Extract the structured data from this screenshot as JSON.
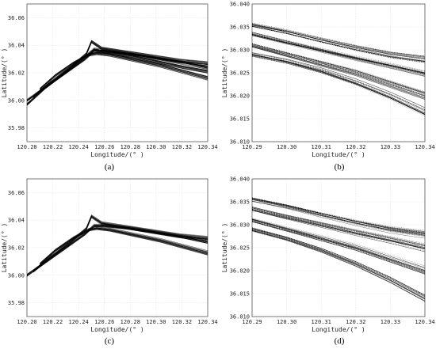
{
  "figure": {
    "captions": [
      "(a)",
      "(b)",
      "(c)",
      "(d)"
    ]
  },
  "chart_data": [
    {
      "type": "line",
      "panel": "(a)",
      "xlabel": "Longitude/(° )",
      "ylabel": "Latitude/(° )",
      "xlim": [
        120.2,
        120.34
      ],
      "ylim": [
        35.97,
        36.07
      ],
      "xticks": [
        "120.20",
        "120.22",
        "120.24",
        "120.26",
        "120.28",
        "120.30",
        "120.32",
        "120.34"
      ],
      "yticks": [
        "35.98",
        "36.00",
        "36.02",
        "36.04",
        "36.06"
      ],
      "grid": true,
      "series": [
        {
          "x": [
            120.2,
            120.215,
            120.23,
            120.245,
            120.252,
            120.26,
            120.28,
            120.3,
            120.32,
            120.34
          ],
          "y": [
            36.0,
            36.01,
            36.02,
            36.03,
            36.036,
            36.036,
            36.034,
            36.031,
            36.028,
            36.024
          ]
        },
        {
          "x": [
            120.2,
            120.214,
            120.228,
            120.243,
            120.252,
            120.262,
            120.282,
            120.302,
            120.322,
            120.34
          ],
          "y": [
            35.997,
            36.009,
            36.019,
            36.03,
            36.037,
            36.035,
            36.032,
            36.028,
            36.024,
            36.021
          ]
        },
        {
          "x": [
            120.205,
            120.218,
            120.232,
            120.246,
            120.25,
            120.258,
            120.278,
            120.298,
            120.318,
            120.34
          ],
          "y": [
            36.003,
            36.013,
            36.023,
            36.034,
            36.043,
            36.038,
            36.035,
            36.032,
            36.029,
            36.027
          ]
        },
        {
          "x": [
            120.21,
            120.222,
            120.236,
            120.248,
            120.254,
            120.264,
            120.284,
            120.304,
            120.324,
            120.34
          ],
          "y": [
            36.008,
            36.018,
            36.027,
            36.033,
            36.034,
            36.033,
            36.029,
            36.025,
            36.02,
            36.016
          ]
        }
      ]
    },
    {
      "type": "line",
      "panel": "(b)",
      "xlabel": "Longitude/(° )",
      "ylabel": "Latitude/(° )",
      "xlim": [
        120.29,
        120.34
      ],
      "ylim": [
        36.01,
        36.04
      ],
      "xticks": [
        "120.29",
        "120.30",
        "120.31",
        "120.32",
        "120.33",
        "120.34"
      ],
      "yticks": [
        "36.010",
        "36.015",
        "36.020",
        "36.025",
        "36.030",
        "36.035",
        "36.040"
      ],
      "grid": true,
      "series": [
        {
          "x": [
            120.29,
            120.3,
            120.31,
            120.32,
            120.33,
            120.34
          ],
          "y": [
            36.0335,
            36.0317,
            36.03,
            36.0283,
            36.0267,
            36.025
          ]
        },
        {
          "x": [
            120.29,
            120.3,
            120.31,
            120.32,
            120.33,
            120.34
          ],
          "y": [
            36.031,
            36.029,
            36.027,
            36.025,
            36.0225,
            36.02
          ]
        },
        {
          "x": [
            120.29,
            120.3,
            120.31,
            120.32,
            120.33,
            120.34
          ],
          "y": [
            36.029,
            36.0275,
            36.0255,
            36.023,
            36.02,
            36.0165
          ]
        },
        {
          "x": [
            120.29,
            120.3,
            120.31,
            120.32,
            120.33,
            120.34
          ],
          "y": [
            36.0355,
            36.034,
            36.0322,
            36.0305,
            36.029,
            36.028
          ]
        }
      ]
    },
    {
      "type": "line",
      "panel": "(c)",
      "xlabel": "Longitude/(° )",
      "ylabel": "Latitude/(° )",
      "xlim": [
        120.2,
        120.34
      ],
      "ylim": [
        35.97,
        36.07
      ],
      "xticks": [
        "120.20",
        "120.22",
        "120.24",
        "120.26",
        "120.28",
        "120.30",
        "120.32",
        "120.34"
      ],
      "yticks": [
        "35.98",
        "36.00",
        "36.02",
        "36.04",
        "36.06"
      ],
      "grid": true,
      "series": [
        {
          "x": [
            120.2,
            120.215,
            120.23,
            120.245,
            120.252,
            120.26,
            120.28,
            120.3,
            120.32,
            120.34
          ],
          "y": [
            36.0,
            36.01,
            36.02,
            36.03,
            36.036,
            36.036,
            36.034,
            36.031,
            36.028,
            36.024
          ]
        },
        {
          "x": [
            120.205,
            120.218,
            120.232,
            120.246,
            120.25,
            120.258,
            120.278,
            120.298,
            120.318,
            120.34
          ],
          "y": [
            36.003,
            36.013,
            36.023,
            36.034,
            36.043,
            36.038,
            36.035,
            36.032,
            36.029,
            36.027
          ]
        },
        {
          "x": [
            120.21,
            120.222,
            120.236,
            120.248,
            120.254,
            120.264,
            120.284,
            120.304,
            120.324,
            120.34
          ],
          "y": [
            36.008,
            36.018,
            36.027,
            36.033,
            36.034,
            36.033,
            36.029,
            36.025,
            36.02,
            36.016
          ]
        }
      ]
    },
    {
      "type": "line",
      "panel": "(d)",
      "xlabel": "Longitude/(° )",
      "ylabel": "Latitude/(° )",
      "xlim": [
        120.29,
        120.34
      ],
      "ylim": [
        36.01,
        36.04
      ],
      "xticks": [
        "120.29",
        "120.30",
        "120.31",
        "120.32",
        "120.33",
        "120.34"
      ],
      "yticks": [
        "36.010",
        "36.015",
        "36.020",
        "36.025",
        "36.030",
        "36.035",
        "36.040"
      ],
      "grid": true,
      "series": [
        {
          "x": [
            120.29,
            120.3,
            120.31,
            120.32,
            120.33,
            120.34
          ],
          "y": [
            36.0335,
            36.0317,
            36.03,
            36.0283,
            36.0267,
            36.025
          ]
        },
        {
          "x": [
            120.29,
            120.3,
            120.31,
            120.32,
            120.33,
            120.34
          ],
          "y": [
            36.031,
            36.029,
            36.027,
            36.025,
            36.0225,
            36.02
          ]
        },
        {
          "x": [
            120.29,
            120.3,
            120.31,
            120.32,
            120.33,
            120.34
          ],
          "y": [
            36.029,
            36.027,
            36.0245,
            36.0215,
            36.018,
            36.014
          ]
        },
        {
          "x": [
            120.29,
            120.3,
            120.31,
            120.32,
            120.33,
            120.34
          ],
          "y": [
            36.0355,
            36.034,
            36.0322,
            36.0305,
            36.029,
            36.028
          ]
        }
      ]
    }
  ]
}
